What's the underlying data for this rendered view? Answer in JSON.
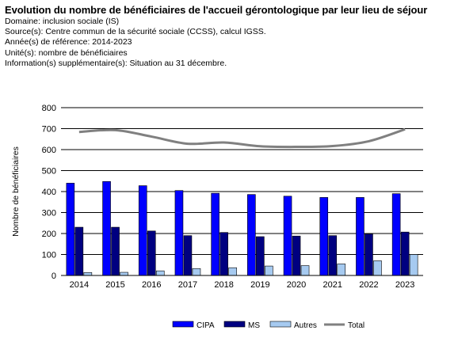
{
  "header": {
    "title": "Evolution du nombre de bénéficiaires de l'accueil gérontologique par leur lieu de séjour",
    "lines": [
      "Domaine: inclusion sociale (IS)",
      "Source(s): Centre commun de la sécurité sociale (CCSS), calcul IGSS.",
      "Année(s) de référence: 2014-2023",
      "Unité(s): nombre de bénéficiaires",
      "Information(s) supplémentaire(s): Situation au 31 décembre."
    ]
  },
  "chart_data": {
    "type": "bar",
    "title": "",
    "xlabel": "",
    "ylabel": "Nombre de bénéficiaires",
    "ylim": [
      0,
      800
    ],
    "yticks": [
      0,
      100,
      200,
      300,
      400,
      500,
      600,
      700,
      800
    ],
    "grid": true,
    "legend_position": "bottom",
    "categories": [
      "2014",
      "2015",
      "2016",
      "2017",
      "2018",
      "2019",
      "2020",
      "2021",
      "2022",
      "2023"
    ],
    "series": [
      {
        "name": "CIPA",
        "kind": "bar",
        "color": "#0000ff",
        "values": [
          440,
          448,
          428,
          405,
          392,
          386,
          378,
          372,
          372,
          390
        ]
      },
      {
        "name": "MS",
        "kind": "bar",
        "color": "#000080",
        "values": [
          230,
          230,
          212,
          190,
          205,
          185,
          188,
          190,
          198,
          207
        ]
      },
      {
        "name": "Autres",
        "kind": "bar",
        "color": "#a6caf0",
        "values": [
          14,
          15,
          22,
          33,
          37,
          45,
          47,
          55,
          70,
          100
        ]
      },
      {
        "name": "Total",
        "kind": "line",
        "color": "#808080",
        "values": [
          684,
          693,
          662,
          628,
          634,
          616,
          613,
          617,
          640,
          697
        ]
      }
    ]
  }
}
